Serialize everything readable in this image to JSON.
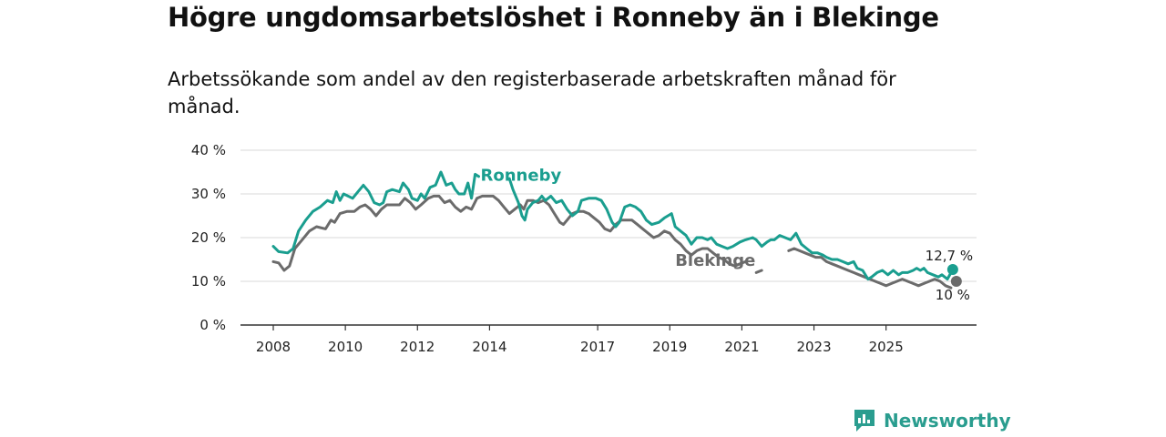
{
  "title": "Högre ungdomsarbetslöshet i Ronneby än i Blekinge",
  "subtitle": "Arbetssökande som andel av den registerbaserade arbetskraften månad för månad.",
  "brand": {
    "name": "Newsworthy",
    "color": "#2a9d8f"
  },
  "chart_data": {
    "type": "line",
    "title": "Högre ungdomsarbetslöshet i Ronneby än i Blekinge",
    "xlabel": "",
    "ylabel": "",
    "ylim": [
      0,
      40
    ],
    "xlim": [
      2008,
      2026.6
    ],
    "y_ticks": [
      0,
      10,
      20,
      30,
      40
    ],
    "y_tick_labels": [
      "0 %",
      "10 %",
      "20 %",
      "30 %",
      "40 %"
    ],
    "x_ticks": [
      2008,
      2010,
      2012,
      2014,
      2017,
      2019,
      2021,
      2023,
      2025
    ],
    "x_tick_labels": [
      "2008",
      "2010",
      "2012",
      "2014",
      "2017",
      "2019",
      "2021",
      "2023",
      "2025"
    ],
    "grid": true,
    "series": [
      {
        "name": "Ronneby",
        "color": "#1a9e8f",
        "end_label": "12,7 %",
        "points": [
          [
            2008.0,
            18.0
          ],
          [
            2008.15,
            16.8
          ],
          [
            2008.4,
            16.5
          ],
          [
            2008.55,
            17.5
          ],
          [
            2008.7,
            21.5
          ],
          [
            2008.9,
            24.0
          ],
          [
            2009.1,
            26.0
          ],
          [
            2009.3,
            27.0
          ],
          [
            2009.5,
            28.5
          ],
          [
            2009.65,
            28.0
          ],
          [
            2009.75,
            30.5
          ],
          [
            2009.85,
            28.5
          ],
          [
            2009.95,
            30.0
          ],
          [
            2010.2,
            29.0
          ],
          [
            2010.35,
            30.5
          ],
          [
            2010.5,
            32.0
          ],
          [
            2010.65,
            30.5
          ],
          [
            2010.8,
            28.0
          ],
          [
            2010.95,
            27.5
          ],
          [
            2011.05,
            28.0
          ],
          [
            2011.15,
            30.5
          ],
          [
            2011.3,
            31.0
          ],
          [
            2011.5,
            30.5
          ],
          [
            2011.6,
            32.5
          ],
          [
            2011.75,
            31.0
          ],
          [
            2011.85,
            29.0
          ],
          [
            2012.0,
            28.5
          ],
          [
            2012.1,
            30.0
          ],
          [
            2012.2,
            29.0
          ],
          [
            2012.35,
            31.5
          ],
          [
            2012.5,
            32.0
          ],
          [
            2012.65,
            35.0
          ],
          [
            2012.8,
            32.0
          ],
          [
            2012.95,
            32.5
          ],
          [
            2013.05,
            31.0
          ],
          [
            2013.15,
            30.0
          ],
          [
            2013.3,
            30.0
          ],
          [
            2013.4,
            32.5
          ],
          [
            2013.5,
            29.0
          ],
          [
            2013.6,
            34.5
          ],
          [
            2013.7,
            34.0
          ],
          null,
          [
            2014.55,
            33.5
          ],
          [
            2014.65,
            31.0
          ],
          [
            2014.8,
            28.0
          ],
          [
            2014.9,
            25.0
          ],
          [
            2014.98,
            24.0
          ],
          [
            2015.05,
            26.5
          ],
          [
            2015.2,
            28.0
          ],
          [
            2015.35,
            28.5
          ],
          [
            2015.45,
            29.5
          ],
          [
            2015.55,
            28.5
          ],
          [
            2015.7,
            29.5
          ],
          [
            2015.85,
            28.0
          ],
          [
            2016.0,
            28.5
          ],
          [
            2016.15,
            26.5
          ],
          [
            2016.3,
            25.0
          ],
          [
            2016.45,
            26.0
          ],
          [
            2016.55,
            28.5
          ],
          [
            2016.75,
            29.0
          ],
          [
            2016.95,
            29.0
          ],
          [
            2017.1,
            28.5
          ],
          [
            2017.25,
            26.5
          ],
          [
            2017.4,
            23.5
          ],
          [
            2017.5,
            22.5
          ],
          [
            2017.6,
            23.5
          ],
          [
            2017.75,
            27.0
          ],
          [
            2017.9,
            27.5
          ],
          [
            2018.05,
            27.0
          ],
          [
            2018.2,
            26.0
          ],
          [
            2018.35,
            24.0
          ],
          [
            2018.5,
            23.0
          ],
          [
            2018.7,
            23.5
          ],
          [
            2018.85,
            24.5
          ],
          [
            2019.05,
            25.5
          ],
          [
            2019.15,
            22.5
          ],
          [
            2019.3,
            21.5
          ],
          [
            2019.45,
            20.5
          ],
          [
            2019.6,
            18.5
          ],
          [
            2019.75,
            20.0
          ],
          [
            2019.9,
            20.0
          ],
          [
            2020.05,
            19.5
          ],
          [
            2020.15,
            20.0
          ],
          [
            2020.3,
            18.5
          ],
          [
            2020.45,
            18.0
          ],
          [
            2020.6,
            17.5
          ],
          [
            2020.75,
            18.0
          ],
          [
            2020.95,
            19.0
          ],
          [
            2021.1,
            19.5
          ],
          [
            2021.3,
            20.0
          ],
          [
            2021.4,
            19.5
          ],
          [
            2021.55,
            18.0
          ],
          [
            2021.7,
            19.0
          ],
          [
            2021.8,
            19.5
          ],
          [
            2021.9,
            19.5
          ],
          [
            2022.05,
            20.5
          ],
          [
            2022.2,
            20.0
          ],
          [
            2022.35,
            19.5
          ],
          [
            2022.5,
            21.0
          ],
          [
            2022.65,
            18.5
          ],
          [
            2022.8,
            17.5
          ],
          [
            2022.95,
            16.5
          ],
          [
            2023.1,
            16.5
          ],
          [
            2023.25,
            16.0
          ],
          [
            2023.35,
            15.5
          ],
          [
            2023.5,
            15.0
          ],
          [
            2023.65,
            15.0
          ],
          [
            2023.8,
            14.5
          ],
          [
            2023.95,
            14.0
          ],
          [
            2024.1,
            14.5
          ],
          [
            2024.2,
            13.0
          ],
          [
            2024.35,
            12.5
          ],
          [
            2024.5,
            10.5
          ],
          [
            2024.6,
            11.0
          ],
          [
            2024.75,
            12.0
          ],
          [
            2024.9,
            12.5
          ],
          [
            2025.05,
            11.5
          ],
          [
            2025.2,
            12.5
          ],
          [
            2025.35,
            11.5
          ],
          [
            2025.45,
            12.0
          ],
          [
            2025.6,
            12.0
          ],
          [
            2025.75,
            12.5
          ],
          [
            2025.85,
            13.0
          ],
          [
            2025.95,
            12.5
          ],
          [
            2026.05,
            13.0
          ],
          [
            2026.15,
            12.0
          ],
          [
            2026.3,
            11.5
          ],
          [
            2026.45,
            11.0
          ],
          [
            2026.55,
            11.5
          ],
          [
            2026.7,
            10.5
          ],
          [
            2026.85,
            12.7
          ]
        ]
      },
      {
        "name": "Blekinge",
        "color": "#6b6b6b",
        "end_label": "10 %",
        "points": [
          [
            2008.0,
            14.5
          ],
          [
            2008.15,
            14.2
          ],
          [
            2008.3,
            12.5
          ],
          [
            2008.45,
            13.5
          ],
          [
            2008.6,
            17.5
          ],
          [
            2008.8,
            19.5
          ],
          [
            2009.0,
            21.5
          ],
          [
            2009.2,
            22.5
          ],
          [
            2009.45,
            22.0
          ],
          [
            2009.6,
            24.0
          ],
          [
            2009.7,
            23.5
          ],
          [
            2009.85,
            25.5
          ],
          [
            2010.05,
            26.0
          ],
          [
            2010.25,
            26.0
          ],
          [
            2010.4,
            27.0
          ],
          [
            2010.55,
            27.5
          ],
          [
            2010.7,
            26.5
          ],
          [
            2010.85,
            25.0
          ],
          [
            2011.0,
            26.5
          ],
          [
            2011.15,
            27.5
          ],
          [
            2011.35,
            27.5
          ],
          [
            2011.5,
            27.5
          ],
          [
            2011.65,
            29.0
          ],
          [
            2011.8,
            28.0
          ],
          [
            2011.95,
            26.5
          ],
          [
            2012.1,
            27.5
          ],
          [
            2012.3,
            29.0
          ],
          [
            2012.45,
            29.5
          ],
          [
            2012.6,
            29.5
          ],
          [
            2012.75,
            28.0
          ],
          [
            2012.9,
            28.5
          ],
          [
            2013.05,
            27.0
          ],
          [
            2013.2,
            26.0
          ],
          [
            2013.35,
            27.0
          ],
          [
            2013.5,
            26.5
          ],
          [
            2013.65,
            29.0
          ],
          [
            2013.8,
            29.5
          ],
          [
            2013.95,
            29.5
          ],
          [
            2014.1,
            29.5
          ],
          [
            2014.25,
            28.5
          ],
          [
            2014.4,
            27.0
          ],
          [
            2014.55,
            25.5
          ],
          [
            2014.7,
            26.5
          ],
          [
            2014.85,
            27.5
          ],
          [
            2014.95,
            26.5
          ],
          [
            2015.05,
            28.5
          ],
          [
            2015.2,
            28.5
          ],
          [
            2015.35,
            28.0
          ],
          [
            2015.5,
            28.5
          ],
          [
            2015.65,
            27.5
          ],
          [
            2015.8,
            25.5
          ],
          [
            2015.95,
            23.5
          ],
          [
            2016.05,
            23.0
          ],
          [
            2016.15,
            24.0
          ],
          [
            2016.3,
            25.5
          ],
          [
            2016.45,
            26.0
          ],
          [
            2016.6,
            26.0
          ],
          [
            2016.75,
            25.5
          ],
          [
            2016.9,
            24.5
          ],
          [
            2017.05,
            23.5
          ],
          [
            2017.2,
            22.0
          ],
          [
            2017.35,
            21.5
          ],
          [
            2017.5,
            23.0
          ],
          [
            2017.65,
            24.0
          ],
          [
            2017.8,
            24.0
          ],
          [
            2017.95,
            24.0
          ],
          [
            2018.1,
            23.0
          ],
          [
            2018.25,
            22.0
          ],
          [
            2018.4,
            21.0
          ],
          [
            2018.55,
            20.0
          ],
          [
            2018.7,
            20.5
          ],
          [
            2018.85,
            21.5
          ],
          [
            2019.0,
            21.0
          ],
          [
            2019.15,
            19.5
          ],
          [
            2019.3,
            18.5
          ],
          [
            2019.45,
            17.0
          ],
          [
            2019.6,
            16.0
          ],
          [
            2019.75,
            17.0
          ],
          [
            2019.9,
            17.5
          ],
          [
            2020.05,
            17.5
          ],
          [
            2020.2,
            16.5
          ],
          [
            2020.35,
            15.5
          ],
          [
            2020.5,
            15.0
          ],
          [
            2020.65,
            14.0
          ],
          [
            2020.8,
            13.5
          ],
          [
            2020.95,
            14.0
          ],
          [
            2021.1,
            14.5
          ],
          null,
          [
            2021.4,
            12.0
          ],
          [
            2021.55,
            12.5
          ],
          null,
          [
            2022.3,
            17.0
          ],
          [
            2022.45,
            17.5
          ],
          [
            2022.6,
            17.0
          ],
          [
            2022.75,
            16.5
          ],
          [
            2022.9,
            16.0
          ],
          [
            2023.05,
            15.5
          ],
          [
            2023.2,
            15.5
          ],
          [
            2023.35,
            14.5
          ],
          [
            2023.5,
            14.0
          ],
          [
            2023.65,
            13.5
          ],
          [
            2023.8,
            13.0
          ],
          [
            2023.95,
            12.5
          ],
          [
            2024.1,
            12.0
          ],
          [
            2024.25,
            11.5
          ],
          [
            2024.4,
            11.0
          ],
          [
            2024.55,
            10.5
          ],
          [
            2024.7,
            10.0
          ],
          [
            2024.85,
            9.5
          ],
          [
            2025.0,
            9.0
          ],
          [
            2025.15,
            9.5
          ],
          [
            2025.3,
            10.0
          ],
          [
            2025.45,
            10.5
          ],
          [
            2025.6,
            10.0
          ],
          [
            2025.75,
            9.5
          ],
          [
            2025.9,
            9.0
          ],
          [
            2026.05,
            9.5
          ],
          [
            2026.2,
            10.0
          ],
          [
            2026.35,
            10.5
          ],
          [
            2026.5,
            10.0
          ],
          [
            2026.65,
            9.0
          ],
          [
            2026.8,
            8.5
          ],
          null,
          [
            2026.95,
            10.0
          ]
        ]
      }
    ]
  }
}
